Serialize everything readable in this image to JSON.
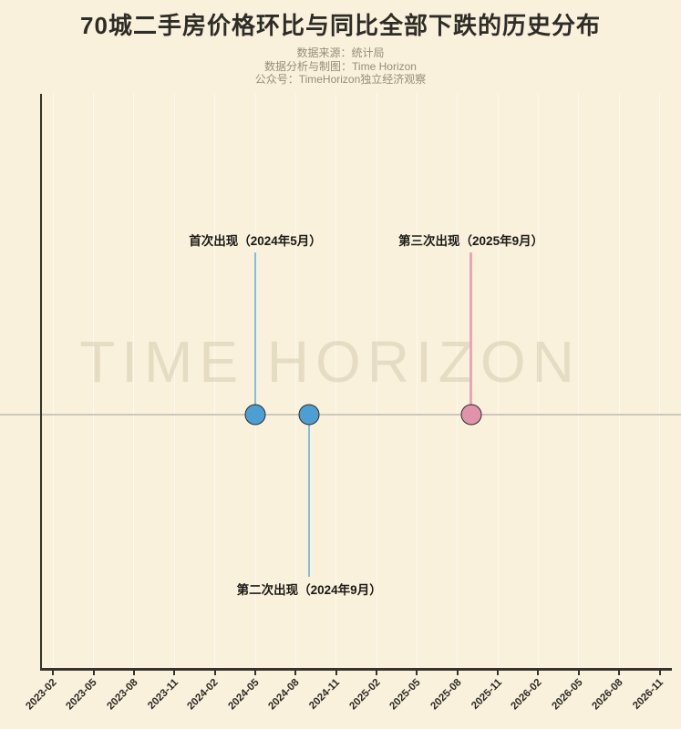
{
  "page": {
    "background_color": "#faf1dc"
  },
  "header": {
    "title": "70城二手房价格环比与同比全部下跌的历史分布",
    "subtitle_lines": [
      "数据来源：统计局",
      "数据分析与制图：Time Horizon",
      "公众号：TimeHorizon独立经济观察"
    ]
  },
  "watermark": "TIME HORIZON",
  "chart_data": {
    "type": "scatter",
    "title": "70城二手房价格环比与同比全部下跌的历史分布",
    "xlabel": "",
    "ylabel": "",
    "x_range": [
      "2023-02",
      "2026-12"
    ],
    "x_tick_labels": [
      "2023-02",
      "2023-05",
      "2023-08",
      "2023-11",
      "2024-02",
      "2024-05",
      "2024-08",
      "2024-11",
      "2025-02",
      "2025-05",
      "2025-08",
      "2025-11",
      "2026-02",
      "2026-05",
      "2026-08",
      "2026-11"
    ],
    "grid": "faint-vertical",
    "legend": "none",
    "baseline_y": 0,
    "baseline_color": "#ccc8b9",
    "points": [
      {
        "x": "2024-05",
        "y": 0,
        "label": "首次出现（2024年5月）",
        "dot_color": "#4d9fd3",
        "stem_color": "#84bedf",
        "annotation_side": "above"
      },
      {
        "x": "2024-09",
        "y": 0,
        "label": "第二次出现（2024年9月）",
        "dot_color": "#4d9fd3",
        "stem_color": "#84bedf",
        "annotation_side": "below"
      },
      {
        "x": "2025-09",
        "y": 0,
        "label": "第三次出现（2025年9月）",
        "dot_color": "#e093aa",
        "stem_color": "#e7a7b6",
        "annotation_side": "above"
      }
    ]
  }
}
